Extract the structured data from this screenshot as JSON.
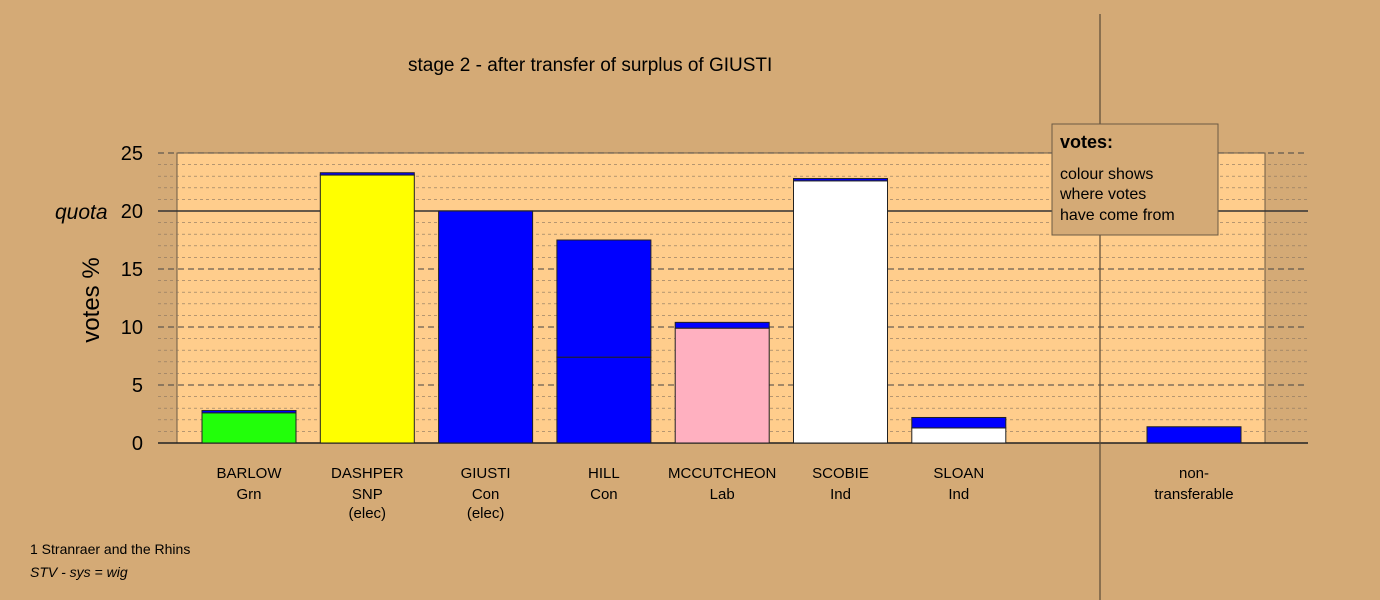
{
  "chart_data": {
    "type": "bar",
    "title": "stage 2 - after transfer of surplus of GIUSTI",
    "ylabel": "votes %",
    "ylim": [
      0,
      25
    ],
    "yticks": [
      0,
      5,
      10,
      15,
      20,
      25
    ],
    "quota": 20,
    "quota_label": "quota",
    "grid": true,
    "colors": {
      "Grn": "#22ff0a",
      "SNP": "#ffff00",
      "Con": "#0000ff",
      "Lab": "#ffb0c0",
      "Ind": "#ffffff",
      "plot_bg": "#ffcd8c",
      "page_bg": "#d4aa76"
    },
    "candidates": [
      {
        "name": "BARLOW",
        "party": "Grn",
        "note": "",
        "segments": [
          {
            "value": 2.6,
            "from": "Grn"
          },
          {
            "value": 0.2,
            "from": "Con"
          }
        ]
      },
      {
        "name": "DASHPER",
        "party": "SNP",
        "note": "(elec)",
        "segments": [
          {
            "value": 23.1,
            "from": "SNP"
          },
          {
            "value": 0.2,
            "from": "Con"
          }
        ]
      },
      {
        "name": "GIUSTI",
        "party": "Con",
        "note": "(elec)",
        "segments": [
          {
            "value": 20.0,
            "from": "Con"
          }
        ]
      },
      {
        "name": "HILL",
        "party": "Con",
        "note": "",
        "segments": [
          {
            "value": 7.4,
            "from": "Con"
          },
          {
            "value": 10.1,
            "from": "Con"
          }
        ]
      },
      {
        "name": "MCCUTCHEON",
        "party": "Lab",
        "note": "",
        "segments": [
          {
            "value": 9.9,
            "from": "Lab"
          },
          {
            "value": 0.5,
            "from": "Con"
          }
        ]
      },
      {
        "name": "SCOBIE",
        "party": "Ind",
        "note": "",
        "segments": [
          {
            "value": 22.6,
            "from": "Ind"
          },
          {
            "value": 0.2,
            "from": "Con"
          }
        ]
      },
      {
        "name": "SLOAN",
        "party": "Ind",
        "note": "",
        "segments": [
          {
            "value": 1.3,
            "from": "Ind"
          },
          {
            "value": 0.9,
            "from": "Con"
          }
        ]
      }
    ],
    "nontransferable": {
      "label1": "non-",
      "label2": "transferable",
      "segments": [
        {
          "value": 1.4,
          "from": "Con"
        }
      ]
    }
  },
  "legend": {
    "title": "votes:",
    "lines": [
      "colour shows",
      "where votes",
      "have come from"
    ]
  },
  "footer": {
    "line1": "1 Stranraer and the Rhins",
    "line2": "STV - sys = wig"
  }
}
